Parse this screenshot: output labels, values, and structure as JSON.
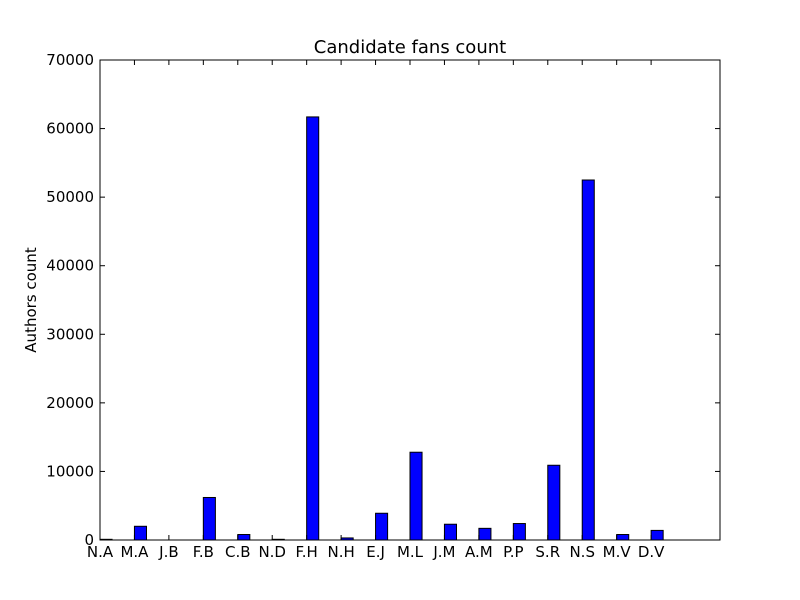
{
  "chart_data": {
    "type": "bar",
    "title": "Candidate fans count",
    "xlabel": "",
    "ylabel": "Authors count",
    "ylim": [
      0,
      70000
    ],
    "yticks": [
      0,
      10000,
      20000,
      30000,
      40000,
      50000,
      60000,
      70000
    ],
    "categories": [
      "N.A",
      "M.A",
      "J.B",
      "F.B",
      "C.B",
      "N.D",
      "F.H",
      "N.H",
      "E.J",
      "M.L",
      "J.M",
      "A.M",
      "P.P",
      "S.R",
      "N.S",
      "M.V",
      "D.V"
    ],
    "values": [
      100,
      2000,
      0,
      6200,
      800,
      100,
      61700,
      300,
      3900,
      12800,
      2300,
      1700,
      2400,
      10900,
      52500,
      800,
      1400
    ],
    "xlim": [
      0,
      18
    ],
    "bar_color": "#0000ff",
    "grid": false,
    "legend": "none"
  }
}
